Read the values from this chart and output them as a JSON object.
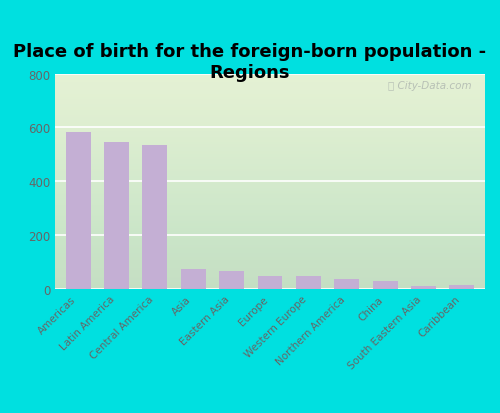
{
  "title": "Place of birth for the foreign-born population -\nRegions",
  "categories": [
    "Americas",
    "Latin America",
    "Central America",
    "Asia",
    "Eastern Asia",
    "Europe",
    "Western Europe",
    "Northern America",
    "China",
    "South Eastern Asia",
    "Caribbean"
  ],
  "values": [
    583,
    546,
    535,
    75,
    65,
    47,
    48,
    38,
    30,
    10,
    13
  ],
  "bar_color": "#c4afd4",
  "ylim": [
    0,
    800
  ],
  "yticks": [
    0,
    200,
    400,
    600,
    800
  ],
  "bg_outer": "#00e0e0",
  "bg_plot": "#e8f2df",
  "title_fontsize": 13,
  "title_fontweight": "bold",
  "watermark": "ⓘ City-Data.com",
  "watermark_color": "#b0b8b0",
  "tick_color": "#666666",
  "tick_fontsize": 8.5,
  "xtick_fontsize": 7.5
}
